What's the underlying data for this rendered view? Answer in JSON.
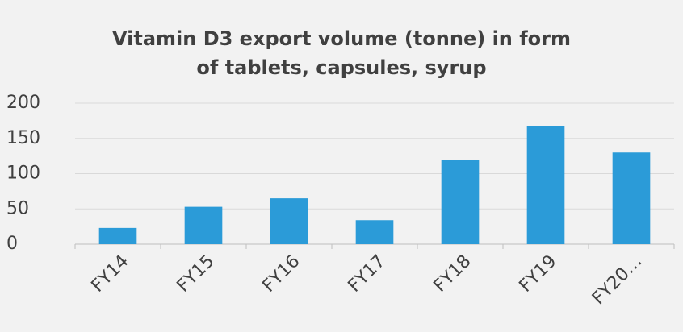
{
  "chart_data": {
    "type": "bar",
    "title": "Vitamin D3 export volume (tonne) in form of tablets, capsules, syrup",
    "categories": [
      "FY14",
      "FY15",
      "FY16",
      "FY17",
      "FY18",
      "FY19",
      "FY20…"
    ],
    "values": [
      23,
      53,
      65,
      34,
      120,
      168,
      130
    ],
    "color": "#2b9bd8",
    "ylim": [
      0,
      200
    ],
    "yticks": [
      0,
      50,
      100,
      150,
      200
    ],
    "grid": true
  }
}
